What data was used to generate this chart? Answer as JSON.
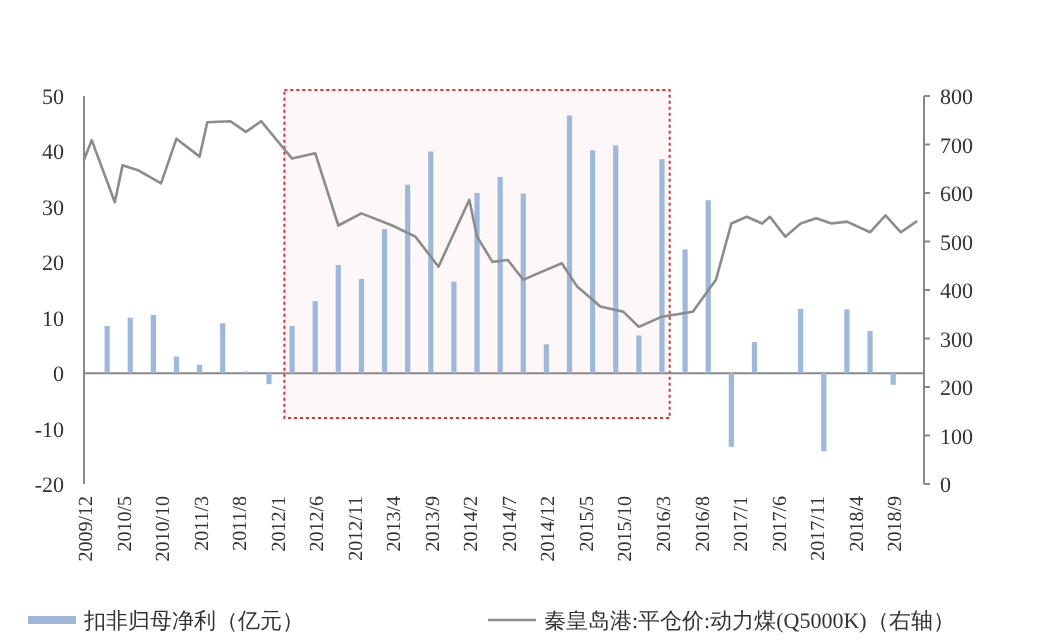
{
  "chart_data": {
    "type": "bar",
    "xlim": [
      "2009-12",
      "2019-01"
    ],
    "xticks": [
      {
        "value": "2009-12",
        "label": "2009/12"
      },
      {
        "value": "2010-05",
        "label": "2010/5"
      },
      {
        "value": "2010-10",
        "label": "2010/10"
      },
      {
        "value": "2011-03",
        "label": "2011/3"
      },
      {
        "value": "2011-08",
        "label": "2011/8"
      },
      {
        "value": "2012-01",
        "label": "2012/1"
      },
      {
        "value": "2012-06",
        "label": "2012/6"
      },
      {
        "value": "2012-11",
        "label": "2012/11"
      },
      {
        "value": "2013-04",
        "label": "2013/4"
      },
      {
        "value": "2013-09",
        "label": "2013/9"
      },
      {
        "value": "2014-02",
        "label": "2014/2"
      },
      {
        "value": "2014-07",
        "label": "2014/7"
      },
      {
        "value": "2014-12",
        "label": "2014/12"
      },
      {
        "value": "2015-05",
        "label": "2015/5"
      },
      {
        "value": "2015-10",
        "label": "2015/10"
      },
      {
        "value": "2016-03",
        "label": "2016/3"
      },
      {
        "value": "2016-08",
        "label": "2016/8"
      },
      {
        "value": "2017-01",
        "label": "2017/1"
      },
      {
        "value": "2017-06",
        "label": "2017/6"
      },
      {
        "value": "2017-11",
        "label": "2017/11"
      },
      {
        "value": "2018-04",
        "label": "2018/4"
      },
      {
        "value": "2018-09",
        "label": "2018/9"
      }
    ],
    "ylim": [
      -20,
      50
    ],
    "yticks": [
      -20,
      -10,
      0,
      10,
      20,
      30,
      40,
      50
    ],
    "y2lim": [
      0,
      800
    ],
    "y2ticks": [
      0,
      100,
      200,
      300,
      400,
      500,
      600,
      700,
      800
    ],
    "legend": "bottom",
    "bands": [
      {
        "axis": "x",
        "from": "2012-02",
        "to": "2016-04",
        "color": "#e03030"
      }
    ],
    "series": [
      {
        "name": "扣非归母净利（亿元）",
        "color": "#9db8dc",
        "x": [
          "2010-03",
          "2010-06",
          "2010-09",
          "2010-12",
          "2011-03",
          "2011-06",
          "2011-09",
          "2011-12",
          "2012-03",
          "2012-06",
          "2012-09",
          "2012-12",
          "2013-03",
          "2013-06",
          "2013-09",
          "2013-12",
          "2014-03",
          "2014-06",
          "2014-09",
          "2014-12",
          "2015-03",
          "2015-06",
          "2015-09",
          "2015-12",
          "2016-03",
          "2016-06",
          "2016-09",
          "2016-12",
          "2017-03",
          "2017-06",
          "2017-09",
          "2017-12",
          "2018-03",
          "2018-06",
          "2018-09"
        ],
        "values": [
          8.5,
          10,
          10.5,
          3,
          1.5,
          9,
          0.3,
          -2,
          8.5,
          13,
          19.5,
          17,
          26,
          34,
          40,
          16.5,
          32.5,
          35.4,
          32.4,
          5.2,
          46.5,
          40.2,
          41.1,
          6.8,
          38.6,
          22.3,
          31.2,
          -13.3,
          5.6,
          0,
          11.6,
          -14.1,
          11.5,
          7.6,
          -2.1
        ]
      },
      {
        "name": "秦皇岛港:平仓价:动力煤(Q5000K)（右轴）",
        "type": "line",
        "axis": "y2",
        "color": "#8c8c8c",
        "x": [
          "2009-12",
          "2010-01",
          "2010-04",
          "2010-05",
          "2010-07",
          "2010-10",
          "2010-12",
          "2011-03",
          "2011-04",
          "2011-07",
          "2011-09",
          "2011-11",
          "2012-03",
          "2012-06",
          "2012-09",
          "2012-12",
          "2013-04",
          "2013-07",
          "2013-10",
          "2014-02",
          "2014-03",
          "2014-05",
          "2014-07",
          "2014-09",
          "2014-10",
          "2015-02",
          "2015-04",
          "2015-07",
          "2015-10",
          "2015-12",
          "2016-03",
          "2016-07",
          "2016-10",
          "2016-12",
          "2017-02",
          "2017-04",
          "2017-05",
          "2017-07",
          "2017-09",
          "2017-11",
          "2018-01",
          "2018-03",
          "2018-06",
          "2018-08",
          "2018-10",
          "2018-12"
        ],
        "values": [
          668,
          709,
          581,
          657,
          647,
          620,
          712,
          675,
          746,
          748,
          726,
          748,
          671,
          682,
          533,
          558,
          533,
          510,
          448,
          586,
          510,
          458,
          462,
          421,
          428,
          455,
          407,
          366,
          355,
          324,
          345,
          355,
          421,
          537,
          551,
          537,
          551,
          510,
          537,
          548,
          537,
          541,
          519,
          554,
          519,
          541
        ]
      }
    ]
  }
}
